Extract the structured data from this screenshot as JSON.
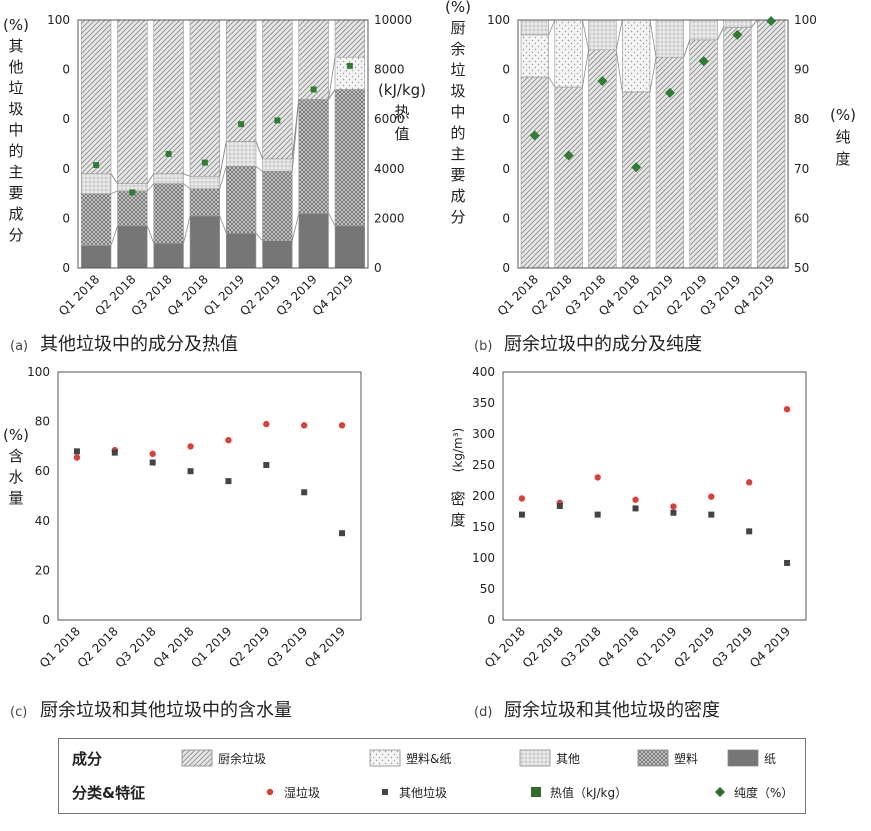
{
  "quarters": [
    "Q1 2018",
    "Q2 2018",
    "Q3 2018",
    "Q4 2018",
    "Q1 2019",
    "Q2 2019",
    "Q3 2019",
    "Q4 2019"
  ],
  "chart_data": [
    {
      "id": "a",
      "type": "bar",
      "stacked": true,
      "caption_prefix": "(a)",
      "caption": "其他垃圾中的成分及热值",
      "ylabel_chars": [
        "(%)",
        "其",
        "他",
        "垃",
        "圾",
        "中",
        "的",
        "主",
        "要",
        "成",
        "分"
      ],
      "y2label_chars": [
        "(kJ/kg)",
        "热",
        "值"
      ],
      "ylim": [
        0,
        100
      ],
      "yticks": [
        "0",
        "0",
        "0",
        "0",
        "0",
        "100"
      ],
      "y2lim": [
        0,
        10000
      ],
      "y2ticks": [
        "0",
        "2000",
        "4000",
        "6000",
        "8000",
        "10000"
      ],
      "series": [
        {
          "name": "纸",
          "pattern": "paper",
          "values": [
            9,
            17,
            10,
            21,
            14,
            11,
            22,
            17
          ]
        },
        {
          "name": "塑料",
          "pattern": "plastic",
          "values": [
            21,
            14,
            24,
            11,
            27,
            28,
            46,
            55
          ]
        },
        {
          "name": "其他",
          "pattern": "other",
          "values": [
            8,
            3,
            4,
            5,
            10,
            5,
            0,
            0
          ]
        },
        {
          "name": "塑料&纸",
          "pattern": "plasticpaper",
          "values": [
            0,
            0,
            0,
            0,
            0,
            0,
            0,
            13
          ]
        },
        {
          "name": "厨余垃圾",
          "pattern": "kitchen",
          "values": [
            62,
            66,
            62,
            63,
            49,
            56,
            32,
            15
          ]
        }
      ],
      "overlay": {
        "name": "热值 (kJ/kg)",
        "marker": "square",
        "color": "#2e7d32",
        "values": [
          4150,
          3050,
          4600,
          4250,
          5800,
          5950,
          7200,
          8150
        ]
      }
    },
    {
      "id": "b",
      "type": "bar",
      "stacked": true,
      "caption_prefix": "(b)",
      "caption": "厨余垃圾中的成分及纯度",
      "ylabel_chars": [
        "(%)",
        "厨",
        "余",
        "垃",
        "圾",
        "中",
        "的",
        "主",
        "要",
        "成",
        "分"
      ],
      "y2label_chars": [
        "(%)",
        "纯",
        "度"
      ],
      "ylim": [
        0,
        100
      ],
      "yticks": [
        "0",
        "0",
        "0",
        "0",
        "0",
        "100"
      ],
      "y2lim": [
        50,
        100
      ],
      "y2ticks": [
        "50",
        "60",
        "70",
        "80",
        "90",
        "100"
      ],
      "series": [
        {
          "name": "厨余垃圾",
          "pattern": "kitchen",
          "values": [
            77,
            73,
            88,
            71,
            85,
            92,
            97,
            100
          ]
        },
        {
          "name": "塑料&纸",
          "pattern": "plasticpaper",
          "values": [
            17,
            27,
            0,
            29,
            0,
            0,
            0,
            0
          ]
        },
        {
          "name": "其他",
          "pattern": "other",
          "values": [
            6,
            0,
            12,
            0,
            15,
            8,
            3,
            0
          ]
        }
      ],
      "overlay": {
        "name": "纯度 (%)",
        "marker": "diamond",
        "color": "#2e7d32",
        "values": [
          76.7,
          72.7,
          87.7,
          70.3,
          85.3,
          91.7,
          97.0,
          99.8
        ]
      }
    },
    {
      "id": "c",
      "type": "scatter",
      "caption_prefix": "(c)",
      "caption": "厨余垃圾和其他垃圾中的含水量",
      "ylabel_chars": [
        "(%)",
        "含",
        "水",
        "量"
      ],
      "ylim": [
        0,
        100
      ],
      "yticks": [
        "0",
        "20",
        "40",
        "60",
        "80",
        "100"
      ],
      "series": [
        {
          "name": "湿垃圾",
          "marker": "circle",
          "color": "#d9403a",
          "values": [
            65.5,
            68.5,
            67,
            70,
            72.5,
            79,
            78.5,
            78.5
          ]
        },
        {
          "name": "其他垃圾",
          "marker": "square",
          "color": "#444444",
          "values": [
            68,
            67.5,
            63.5,
            60,
            56,
            62.5,
            51.5,
            35
          ]
        }
      ]
    },
    {
      "id": "d",
      "type": "scatter",
      "caption_prefix": "(d)",
      "caption": "厨余垃圾和其他垃圾的密度",
      "ylabel_chars": [
        "密",
        "度"
      ],
      "ylabel_unit": "(kg/m³)",
      "ylim": [
        0,
        400
      ],
      "yticks": [
        "0",
        "50",
        "100",
        "150",
        "200",
        "250",
        "300",
        "350",
        "400"
      ],
      "series": [
        {
          "name": "湿垃圾",
          "marker": "circle",
          "color": "#d9403a",
          "values": [
            196,
            189,
            230,
            194,
            183,
            199,
            222,
            340
          ]
        },
        {
          "name": "其他垃圾",
          "marker": "square",
          "color": "#444444",
          "values": [
            170,
            184,
            170,
            180,
            173,
            170,
            143,
            92
          ]
        }
      ]
    }
  ],
  "legend": {
    "row1_title": "成分",
    "row2_title": "分类&特征",
    "components": [
      {
        "label": "厨余垃圾",
        "pattern": "kitchen"
      },
      {
        "label": "塑料&纸",
        "pattern": "plasticpaper"
      },
      {
        "label": "其他",
        "pattern": "other"
      },
      {
        "label": "塑料",
        "pattern": "plastic"
      },
      {
        "label": "纸",
        "pattern": "paper"
      }
    ],
    "features": [
      {
        "label": "湿垃圾",
        "marker": "circle",
        "color": "#d9403a"
      },
      {
        "label": "其他垃圾",
        "marker": "square",
        "color": "#444444"
      },
      {
        "label": "热值（kJ/kg）",
        "marker": "bigsquare",
        "color": "#2e6b2a"
      },
      {
        "label": "纯度（%）",
        "marker": "diamond",
        "color": "#2e6b2a"
      }
    ]
  }
}
